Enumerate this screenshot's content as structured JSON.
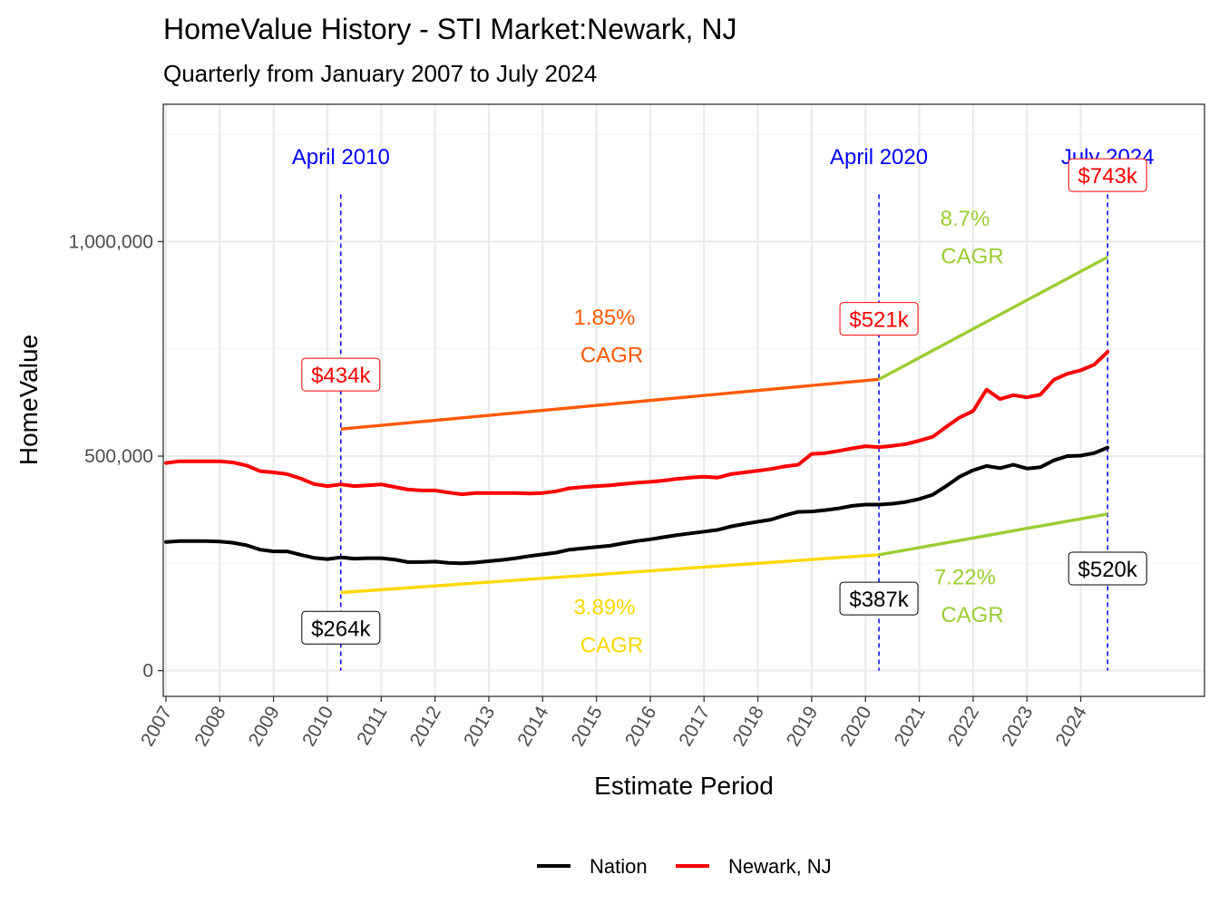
{
  "chart_data": {
    "type": "line",
    "title": "HomeValue History - STI Market:Newark, NJ",
    "subtitle": "Quarterly from January 2007 to July 2024",
    "xlabel": "Estimate Period",
    "ylabel": "HomeValue",
    "xlim": [
      2006.95,
      2026.3
    ],
    "ylim": [
      -60000,
      1320000
    ],
    "x_ticks": [
      "2007",
      "2008",
      "2009",
      "2010",
      "2011",
      "2012",
      "2013",
      "2014",
      "2015",
      "2016",
      "2017",
      "2018",
      "2019",
      "2020",
      "2021",
      "2022",
      "2023",
      "2024"
    ],
    "y_ticks": [
      {
        "value": 0,
        "label": "0"
      },
      {
        "value": 500000,
        "label": "500,000"
      },
      {
        "value": 1000000,
        "label": "1,000,000"
      }
    ],
    "grid": true,
    "legend_position": "bottom",
    "series": [
      {
        "name": "Nation",
        "color": "#000000",
        "points": [
          [
            2007.0,
            300000
          ],
          [
            2007.25,
            302000
          ],
          [
            2007.5,
            302000
          ],
          [
            2007.75,
            302000
          ],
          [
            2008.0,
            301000
          ],
          [
            2008.25,
            298000
          ],
          [
            2008.5,
            292000
          ],
          [
            2008.75,
            282000
          ],
          [
            2009.0,
            278000
          ],
          [
            2009.25,
            278000
          ],
          [
            2009.5,
            270000
          ],
          [
            2009.75,
            263000
          ],
          [
            2010.0,
            260000
          ],
          [
            2010.25,
            264000
          ],
          [
            2010.5,
            261000
          ],
          [
            2010.75,
            262000
          ],
          [
            2011.0,
            262000
          ],
          [
            2011.25,
            259000
          ],
          [
            2011.5,
            253000
          ],
          [
            2011.75,
            253000
          ],
          [
            2012.0,
            254000
          ],
          [
            2012.25,
            251000
          ],
          [
            2012.5,
            250000
          ],
          [
            2012.75,
            252000
          ],
          [
            2013.0,
            255000
          ],
          [
            2013.25,
            258000
          ],
          [
            2013.5,
            262000
          ],
          [
            2013.75,
            267000
          ],
          [
            2014.0,
            271000
          ],
          [
            2014.25,
            275000
          ],
          [
            2014.5,
            282000
          ],
          [
            2014.75,
            285000
          ],
          [
            2015.0,
            288000
          ],
          [
            2015.25,
            291000
          ],
          [
            2015.5,
            297000
          ],
          [
            2015.75,
            302000
          ],
          [
            2016.0,
            306000
          ],
          [
            2016.25,
            311000
          ],
          [
            2016.5,
            316000
          ],
          [
            2016.75,
            320000
          ],
          [
            2017.0,
            324000
          ],
          [
            2017.25,
            328000
          ],
          [
            2017.5,
            336000
          ],
          [
            2017.75,
            342000
          ],
          [
            2018.0,
            347000
          ],
          [
            2018.25,
            352000
          ],
          [
            2018.5,
            362000
          ],
          [
            2018.75,
            370000
          ],
          [
            2019.0,
            371000
          ],
          [
            2019.25,
            374000
          ],
          [
            2019.5,
            378000
          ],
          [
            2019.75,
            384000
          ],
          [
            2020.0,
            387000
          ],
          [
            2020.25,
            387000
          ],
          [
            2020.5,
            389000
          ],
          [
            2020.75,
            393000
          ],
          [
            2021.0,
            400000
          ],
          [
            2021.25,
            410000
          ],
          [
            2021.5,
            430000
          ],
          [
            2021.75,
            452000
          ],
          [
            2022.0,
            467000
          ],
          [
            2022.25,
            477000
          ],
          [
            2022.5,
            472000
          ],
          [
            2022.75,
            480000
          ],
          [
            2023.0,
            471000
          ],
          [
            2023.25,
            474000
          ],
          [
            2023.5,
            490000
          ],
          [
            2023.75,
            500000
          ],
          [
            2024.0,
            501000
          ],
          [
            2024.25,
            507000
          ],
          [
            2024.5,
            520000
          ]
        ]
      },
      {
        "name": "Newark, NJ",
        "color": "#ff0000",
        "points": [
          [
            2007.0,
            484000
          ],
          [
            2007.25,
            488000
          ],
          [
            2007.5,
            488000
          ],
          [
            2007.75,
            488000
          ],
          [
            2008.0,
            488000
          ],
          [
            2008.25,
            485000
          ],
          [
            2008.5,
            478000
          ],
          [
            2008.75,
            465000
          ],
          [
            2009.0,
            462000
          ],
          [
            2009.25,
            458000
          ],
          [
            2009.5,
            448000
          ],
          [
            2009.75,
            435000
          ],
          [
            2010.0,
            430000
          ],
          [
            2010.25,
            434000
          ],
          [
            2010.5,
            430000
          ],
          [
            2010.75,
            432000
          ],
          [
            2011.0,
            434000
          ],
          [
            2011.25,
            428000
          ],
          [
            2011.5,
            422000
          ],
          [
            2011.75,
            420000
          ],
          [
            2012.0,
            420000
          ],
          [
            2012.25,
            415000
          ],
          [
            2012.5,
            411000
          ],
          [
            2012.75,
            414000
          ],
          [
            2013.0,
            414000
          ],
          [
            2013.25,
            414000
          ],
          [
            2013.5,
            414000
          ],
          [
            2013.75,
            413000
          ],
          [
            2014.0,
            414000
          ],
          [
            2014.25,
            418000
          ],
          [
            2014.5,
            425000
          ],
          [
            2014.75,
            428000
          ],
          [
            2015.0,
            430000
          ],
          [
            2015.25,
            432000
          ],
          [
            2015.5,
            435000
          ],
          [
            2015.75,
            438000
          ],
          [
            2016.0,
            440000
          ],
          [
            2016.25,
            443000
          ],
          [
            2016.5,
            447000
          ],
          [
            2016.75,
            450000
          ],
          [
            2017.0,
            452000
          ],
          [
            2017.25,
            450000
          ],
          [
            2017.5,
            458000
          ],
          [
            2017.75,
            462000
          ],
          [
            2018.0,
            466000
          ],
          [
            2018.25,
            470000
          ],
          [
            2018.5,
            476000
          ],
          [
            2018.75,
            480000
          ],
          [
            2019.0,
            505000
          ],
          [
            2019.25,
            507000
          ],
          [
            2019.5,
            512000
          ],
          [
            2019.75,
            518000
          ],
          [
            2020.0,
            523000
          ],
          [
            2020.25,
            521000
          ],
          [
            2020.5,
            524000
          ],
          [
            2020.75,
            528000
          ],
          [
            2021.0,
            536000
          ],
          [
            2021.25,
            545000
          ],
          [
            2021.5,
            568000
          ],
          [
            2021.75,
            590000
          ],
          [
            2022.0,
            605000
          ],
          [
            2022.25,
            655000
          ],
          [
            2022.5,
            633000
          ],
          [
            2022.75,
            642000
          ],
          [
            2023.0,
            637000
          ],
          [
            2023.25,
            643000
          ],
          [
            2023.5,
            678000
          ],
          [
            2023.75,
            692000
          ],
          [
            2024.0,
            700000
          ],
          [
            2024.25,
            713000
          ],
          [
            2024.5,
            743000
          ]
        ]
      }
    ],
    "cagr_lines": [
      {
        "color": "#ff5a00",
        "x": [
          2010.25,
          2020.25
        ],
        "y": [
          563000,
          679000
        ]
      },
      {
        "color": "#9acd32",
        "x": [
          2020.25,
          2024.5
        ],
        "y": [
          679000,
          964000
        ]
      },
      {
        "color": "#ffd700",
        "x": [
          2010.25,
          2020.25
        ],
        "y": [
          182000,
          270000
        ]
      },
      {
        "color": "#9acd32",
        "x": [
          2020.25,
          2024.5
        ],
        "y": [
          270000,
          365000
        ]
      }
    ],
    "vlines": [
      {
        "x": 2010.25,
        "label": "April 2010",
        "label_y": 1200000
      },
      {
        "x": 2020.25,
        "label": "April 2020",
        "label_y": 1200000
      },
      {
        "x": 2024.5,
        "label": "July 2024",
        "label_y": 1200000
      }
    ],
    "vline_color": "#0000ff",
    "vline_top": 1110000,
    "value_labels": [
      {
        "text": "$434k",
        "x": 2010.25,
        "y": 690000,
        "color": "#ff0000"
      },
      {
        "text": "$521k",
        "x": 2020.25,
        "y": 820000,
        "color": "#ff0000"
      },
      {
        "text": "$743k",
        "x": 2024.5,
        "y": 1155000,
        "color": "#ff0000"
      },
      {
        "text": "$264k",
        "x": 2010.25,
        "y": 100000,
        "color": "#000000"
      },
      {
        "text": "$387k",
        "x": 2020.25,
        "y": 168000,
        "color": "#000000"
      },
      {
        "text": "$520k",
        "x": 2024.5,
        "y": 238000,
        "color": "#000000"
      }
    ],
    "cagr_labels": [
      {
        "rate": "1.85%",
        "word": "CAGR",
        "x": 2015.15,
        "y_rate": 825000,
        "y_word": 738000,
        "color": "#ff5a00"
      },
      {
        "rate": "8.7%",
        "word": "CAGR",
        "x": 2021.85,
        "y_rate": 1056000,
        "y_word": 968000,
        "color": "#9acd32"
      },
      {
        "rate": "3.89%",
        "word": "CAGR",
        "x": 2015.15,
        "y_rate": 150000,
        "y_word": 62000,
        "color": "#ffd700"
      },
      {
        "rate": "7.22%",
        "word": "CAGR",
        "x": 2021.85,
        "y_rate": 220000,
        "y_word": 132000,
        "color": "#9acd32"
      }
    ]
  }
}
